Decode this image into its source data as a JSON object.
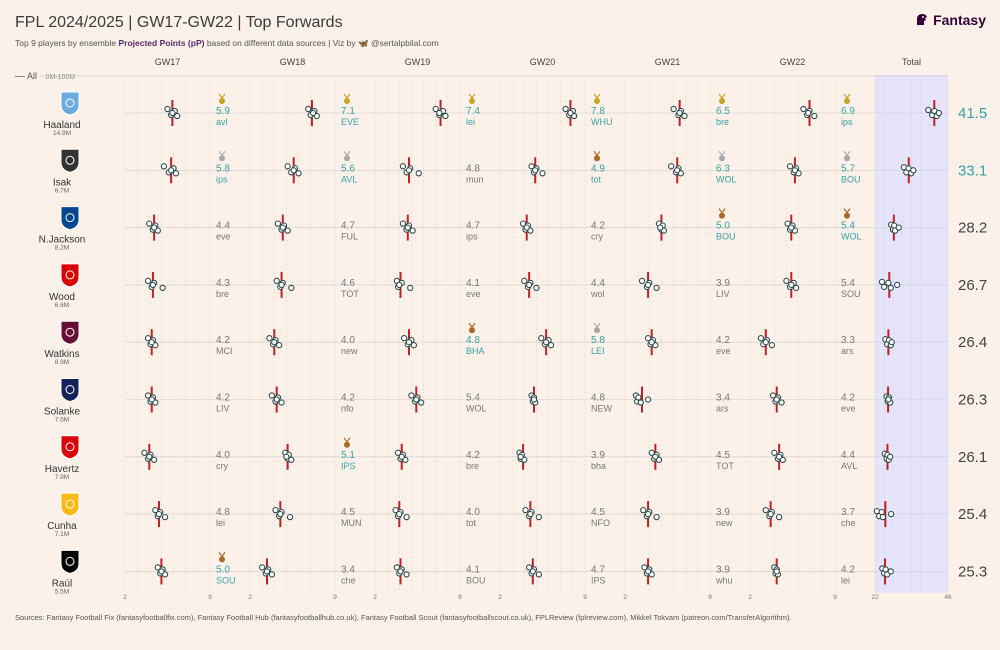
{
  "header": {
    "title": "FPL 2024/2025 | GW17-GW22 | Top Forwards",
    "subtitle_pre": "Top 9 players by ensemble ",
    "subtitle_bold": "Projected Points (pP)",
    "subtitle_post": " based on different data sources | Viz by",
    "handle": "@sertalpbilal.com"
  },
  "brand": {
    "name": "Fantasy",
    "icon": "lion-head-icon"
  },
  "filter": {
    "label": "All",
    "range": "0M-100M"
  },
  "sources": "Sources: Fantasy Football Fix (fantasyfootballfix.com), Fantasy Football Hub (fantasyfootballhub.co.uk), Fantasy Football Scout (fantasyfootballscout.co.uk), FPLReview (fplreview.com), Mikkel Tokvam (patreon.com/TransferAlgorithm).",
  "colors": {
    "background": "#fbf1e8",
    "marker_line": "#c22026",
    "teal_text": "#3aa0a8",
    "grey_text": "#777777",
    "total_band": "#e5e4fb",
    "gold_medal": "#c9a227",
    "silver_medal": "#a8a8a8",
    "bronze_medal": "#a86a2c"
  },
  "chart_data": {
    "type": "scatter",
    "columns": [
      "GW17",
      "GW18",
      "GW19",
      "GW20",
      "GW21",
      "GW22",
      "Total"
    ],
    "gw_axis": [
      2,
      9
    ],
    "total_axis": [
      22,
      46
    ],
    "players": [
      {
        "name": "Haaland",
        "own": "14.9M",
        "badge": "manchester-city-crest-icon",
        "badge_color": "#6cabdd",
        "total": "41.5",
        "total_hl": true,
        "gw": [
          {
            "pp": "5.9",
            "opp": "avl",
            "medal": "gold",
            "pts": [
              5.5,
              5.8,
              6.1,
              6.3,
              5.9
            ]
          },
          {
            "pp": "7.1",
            "opp": "EVE",
            "medal": "gold",
            "pts": [
              6.8,
              7.0,
              7.3,
              7.5,
              7.2
            ]
          },
          {
            "pp": "7.4",
            "opp": "lei",
            "medal": "gold",
            "pts": [
              7.0,
              7.3,
              7.6,
              7.8,
              7.3
            ]
          },
          {
            "pp": "7.8",
            "opp": "WHU",
            "medal": "gold",
            "pts": [
              7.4,
              7.7,
              8.0,
              8.1,
              7.8
            ]
          },
          {
            "pp": "6.5",
            "opp": "bre",
            "medal": "gold",
            "pts": [
              6.0,
              6.4,
              6.6,
              6.9,
              6.5
            ]
          },
          {
            "pp": "6.9",
            "opp": "ips",
            "medal": "gold",
            "pts": [
              6.4,
              6.7,
              6.9,
              7.3,
              6.8
            ]
          }
        ],
        "total_pts": [
          39.5,
          40.8,
          41.5,
          42.3,
          43.0
        ]
      },
      {
        "name": "Isak",
        "own": "8.7M",
        "badge": "newcastle-crest-icon",
        "badge_color": "#333333",
        "total": "33.1",
        "total_hl": true,
        "gw": [
          {
            "pp": "5.8",
            "opp": "ips",
            "medal": "silver",
            "pts": [
              5.2,
              5.6,
              6.0,
              6.2,
              5.8
            ]
          },
          {
            "pp": "5.6",
            "opp": "AVL",
            "medal": "silver",
            "pts": [
              5.1,
              5.4,
              5.7,
              6.0,
              5.6
            ]
          },
          {
            "pp": "4.8",
            "opp": "mun",
            "medal": null,
            "pts": [
              4.3,
              4.6,
              4.9,
              5.6,
              4.8
            ]
          },
          {
            "pp": "4.9",
            "opp": "tot",
            "medal": "bronze",
            "pts": [
              4.6,
              4.8,
              5.0,
              5.5,
              4.9
            ]
          },
          {
            "pp": "6.3",
            "opp": "WOL",
            "medal": "silver",
            "pts": [
              5.8,
              6.2,
              6.4,
              6.6,
              6.3
            ]
          },
          {
            "pp": "5.7",
            "opp": "BOU",
            "medal": "silver",
            "pts": [
              5.3,
              5.6,
              5.8,
              6.0,
              5.7
            ]
          }
        ],
        "total_pts": [
          31.5,
          32.3,
          33.0,
          33.9,
          34.6
        ]
      },
      {
        "name": "N.Jackson",
        "own": "8.2M",
        "badge": "chelsea-crest-icon",
        "badge_color": "#034694",
        "total": "28.2",
        "total_hl": false,
        "gw": [
          {
            "pp": "4.4",
            "opp": "eve",
            "medal": null,
            "pts": [
              4.0,
              4.3,
              4.5,
              4.7,
              4.4
            ]
          },
          {
            "pp": "4.7",
            "opp": "FUL",
            "medal": null,
            "pts": [
              4.3,
              4.6,
              4.8,
              5.1,
              4.7
            ]
          },
          {
            "pp": "4.7",
            "opp": "ips",
            "medal": null,
            "pts": [
              4.3,
              4.6,
              4.8,
              5.1,
              4.7
            ]
          },
          {
            "pp": "4.2",
            "opp": "cry",
            "medal": null,
            "pts": [
              3.9,
              4.1,
              4.3,
              4.5,
              4.2
            ]
          },
          {
            "pp": "5.0",
            "opp": "BOU",
            "medal": "bronze",
            "pts": [
              4.8,
              5.0,
              5.1,
              5.2,
              4.9
            ]
          },
          {
            "pp": "5.4",
            "opp": "WOL",
            "medal": "bronze",
            "pts": [
              5.1,
              5.3,
              5.5,
              5.7,
              5.4
            ]
          }
        ],
        "total_pts": [
          27.3,
          27.9,
          28.3,
          28.6,
          29.8
        ]
      },
      {
        "name": "Wood",
        "own": "6.6M",
        "badge": "nottingham-forest-crest-icon",
        "badge_color": "#dd0000",
        "total": "26.7",
        "total_hl": false,
        "gw": [
          {
            "pp": "4.3",
            "opp": "bre",
            "medal": null,
            "pts": [
              3.9,
              4.2,
              4.4,
              5.1,
              4.3
            ]
          },
          {
            "pp": "4.6",
            "opp": "TOT",
            "medal": null,
            "pts": [
              4.2,
              4.5,
              4.7,
              5.4,
              4.6
            ]
          },
          {
            "pp": "4.1",
            "opp": "eve",
            "medal": null,
            "pts": [
              3.8,
              3.9,
              4.2,
              4.9,
              4.0
            ]
          },
          {
            "pp": "4.4",
            "opp": "wol",
            "medal": null,
            "pts": [
              4.0,
              4.3,
              4.5,
              5.0,
              4.4
            ]
          },
          {
            "pp": "3.9",
            "opp": "LIV",
            "medal": null,
            "pts": [
              3.4,
              3.8,
              4.0,
              4.6,
              3.9
            ]
          },
          {
            "pp": "5.4",
            "opp": "SOU",
            "medal": null,
            "pts": [
              5.0,
              5.3,
              5.6,
              5.8,
              5.4
            ]
          }
        ],
        "total_pts": [
          24.3,
          25.0,
          26.4,
          27.2,
          29.3
        ]
      },
      {
        "name": "Watkins",
        "own": "8.9M",
        "badge": "aston-villa-crest-icon",
        "badge_color": "#670e36",
        "total": "26.4",
        "total_hl": false,
        "gw": [
          {
            "pp": "4.2",
            "opp": "MCI",
            "medal": null,
            "pts": [
              3.9,
              4.1,
              4.3,
              4.5,
              4.2
            ]
          },
          {
            "pp": "4.0",
            "opp": "new",
            "medal": null,
            "pts": [
              3.6,
              3.9,
              4.1,
              4.4,
              4.0
            ]
          },
          {
            "pp": "4.8",
            "opp": "BHA",
            "medal": "bronze",
            "pts": [
              4.4,
              4.7,
              5.0,
              5.2,
              4.8
            ]
          },
          {
            "pp": "5.8",
            "opp": "LEI",
            "medal": "silver",
            "pts": [
              5.4,
              5.7,
              6.0,
              6.2,
              5.8
            ]
          },
          {
            "pp": "4.2",
            "opp": "eve",
            "medal": null,
            "pts": [
              3.9,
              4.1,
              4.3,
              4.5,
              4.2
            ]
          },
          {
            "pp": "3.3",
            "opp": "ars",
            "medal": null,
            "pts": [
              2.9,
              3.1,
              3.4,
              3.8,
              3.3
            ]
          }
        ],
        "total_pts": [
          25.4,
          26.0,
          26.6,
          27.2,
          27.5
        ]
      },
      {
        "name": "Solanke",
        "own": "7.5M",
        "badge": "tottenham-crest-icon",
        "badge_color": "#132257",
        "total": "26.3",
        "total_hl": false,
        "gw": [
          {
            "pp": "4.2",
            "opp": "LIV",
            "medal": null,
            "pts": [
              3.9,
              4.1,
              4.3,
              4.5,
              4.2
            ]
          },
          {
            "pp": "4.2",
            "opp": "nfo",
            "medal": null,
            "pts": [
              3.8,
              4.1,
              4.3,
              4.6,
              4.2
            ]
          },
          {
            "pp": "5.4",
            "opp": "WOL",
            "medal": null,
            "pts": [
              5.0,
              5.3,
              5.5,
              5.8,
              5.4
            ]
          },
          {
            "pp": "4.8",
            "opp": "NEW",
            "medal": null,
            "pts": [
              4.6,
              4.7,
              4.8,
              4.9,
              4.8
            ]
          },
          {
            "pp": "3.4",
            "opp": "ars",
            "medal": null,
            "pts": [
              2.9,
              3.0,
              3.1,
              3.3,
              3.9
            ]
          },
          {
            "pp": "4.2",
            "opp": "eve",
            "medal": null,
            "pts": [
              3.9,
              4.1,
              4.3,
              4.6,
              4.2
            ]
          }
        ],
        "total_pts": [
          25.8,
          26.2,
          26.6,
          27.0,
          26.4
        ]
      },
      {
        "name": "Havertz",
        "own": "7.9M",
        "badge": "arsenal-crest-icon",
        "badge_color": "#db0007",
        "total": "26.1",
        "total_hl": false,
        "gw": [
          {
            "pp": "4.0",
            "opp": "cry",
            "medal": null,
            "pts": [
              3.6,
              3.9,
              4.1,
              4.4,
              4.0
            ]
          },
          {
            "pp": "5.1",
            "opp": "IPS",
            "medal": "bronze",
            "pts": [
              4.9,
              5.1,
              5.2,
              5.4,
              5.0
            ]
          },
          {
            "pp": "4.2",
            "opp": "bre",
            "medal": null,
            "pts": [
              3.9,
              4.1,
              4.3,
              4.5,
              4.2
            ]
          },
          {
            "pp": "3.9",
            "opp": "bha",
            "medal": null,
            "pts": [
              3.6,
              3.7,
              3.8,
              4.0,
              3.7
            ]
          },
          {
            "pp": "4.5",
            "opp": "TOT",
            "medal": null,
            "pts": [
              4.2,
              4.4,
              4.6,
              4.8,
              4.5
            ]
          },
          {
            "pp": "4.4",
            "opp": "AVL",
            "medal": null,
            "pts": [
              4.0,
              4.3,
              4.5,
              4.7,
              4.4
            ]
          }
        ],
        "total_pts": [
          25.2,
          25.8,
          26.1,
          26.5,
          27.0
        ]
      },
      {
        "name": "Cunha",
        "own": "7.1M",
        "badge": "wolves-crest-icon",
        "badge_color": "#fdb913",
        "total": "25.4",
        "total_hl": false,
        "gw": [
          {
            "pp": "4.8",
            "opp": "lei",
            "medal": null,
            "pts": [
              4.5,
              4.7,
              4.9,
              5.3,
              4.8
            ]
          },
          {
            "pp": "4.5",
            "opp": "MUN",
            "medal": null,
            "pts": [
              4.1,
              4.4,
              4.6,
              5.3,
              4.5
            ]
          },
          {
            "pp": "4.0",
            "opp": "tot",
            "medal": null,
            "pts": [
              3.7,
              3.9,
              4.1,
              4.6,
              4.0
            ]
          },
          {
            "pp": "4.5",
            "opp": "NFO",
            "medal": null,
            "pts": [
              4.1,
              4.4,
              4.6,
              5.2,
              4.5
            ]
          },
          {
            "pp": "3.9",
            "opp": "new",
            "medal": null,
            "pts": [
              3.5,
              3.8,
              4.0,
              4.6,
              3.9
            ]
          },
          {
            "pp": "3.7",
            "opp": "che",
            "medal": null,
            "pts": [
              3.3,
              3.6,
              3.8,
              4.4,
              3.7
            ]
          }
        ],
        "total_pts": [
          22.6,
          23.4,
          24.2,
          24.6,
          27.3
        ]
      },
      {
        "name": "Raúl",
        "own": "5.5M",
        "badge": "fulham-crest-icon",
        "badge_color": "#000000",
        "total": "25.3",
        "total_hl": false,
        "gw": [
          {
            "pp": "5.0",
            "opp": "SOU",
            "medal": "bronze",
            "pts": [
              4.7,
              4.9,
              5.1,
              5.3,
              5.0
            ]
          },
          {
            "pp": "3.4",
            "opp": "che",
            "medal": null,
            "pts": [
              3.0,
              3.3,
              3.5,
              3.8,
              3.4
            ]
          },
          {
            "pp": "4.1",
            "opp": "BOU",
            "medal": null,
            "pts": [
              3.8,
              4.0,
              4.2,
              4.6,
              4.1
            ]
          },
          {
            "pp": "4.7",
            "opp": "IPS",
            "medal": null,
            "pts": [
              4.4,
              4.6,
              4.8,
              5.2,
              4.7
            ]
          },
          {
            "pp": "3.9",
            "opp": "whu",
            "medal": null,
            "pts": [
              3.6,
              3.8,
              4.0,
              4.2,
              3.9
            ]
          },
          {
            "pp": "4.2",
            "opp": "lei",
            "medal": null,
            "pts": [
              4.0,
              4.1,
              4.2,
              4.3,
              4.2
            ]
          }
        ],
        "total_pts": [
          24.4,
          25.0,
          25.5,
          26.0,
          27.2
        ]
      }
    ]
  }
}
